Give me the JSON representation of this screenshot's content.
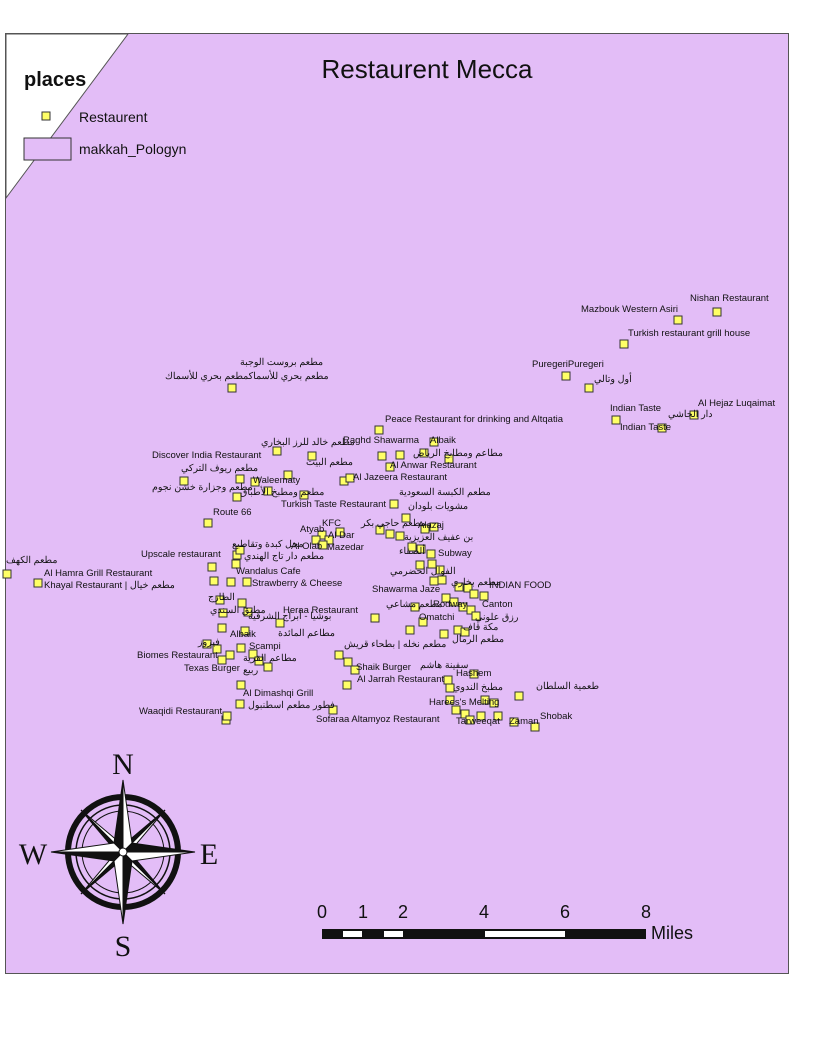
{
  "map_title": "Restaurent Mecca",
  "legend": {
    "heading": "places",
    "restaurant_label": "Restaurent",
    "polygon_label": "makkah_Pologyn",
    "marker_color": "#ffff66",
    "polygon_color": "#e3bdf7"
  },
  "compass": {
    "north": "N",
    "south": "S",
    "east": "E",
    "west": "W"
  },
  "scale_bar": {
    "ticks": [
      "0",
      "1",
      "2",
      "4",
      "6",
      "8"
    ],
    "unit": "Miles"
  },
  "labels": [
    "Nishan Restaurant",
    "Mazbouk Western Asiri",
    "Turkish restaurant grill house",
    "PuregeriPuregeri",
    "أول وتالي",
    "Indian Taste",
    "Indian Taste",
    "Al Hejaz Luqaimat",
    "دار الحاشي",
    "مطعم بروست الوجبة",
    "مطعم بحري للأسماكمطعم بحري للأسماك",
    "Peace Restaurant for drinking and Altqatia",
    "مطعم خالد للرز البخاري",
    "Raghd Shawarma",
    "Albaik",
    "مطاعم ومطابخ الرياض",
    "Discover India Restaurant",
    "مطعم البيت",
    "مطعم ريوف التركي",
    "Al Anwar Restaurant",
    "Waleematy",
    "مطعم وجزارة خشن نجوم",
    "Al Jazeera Restaurant",
    "مطعم ومطبخ الأطباق",
    "مطعم الكبسة السعودية",
    "Turkish Taste Restaurant",
    "مشويات بلودان",
    "Route 66",
    "KFC",
    "مطعم حاجي بكر",
    "Alazaj",
    "Atyab",
    "Al Dar",
    "بن عفيف العزيزية",
    "محل كبدة وتقاطيع",
    "Al Olab",
    "Mazedar",
    "ألصفاء",
    "Subway",
    "Upscale restaurant",
    "مطعم دار تاج الهندي",
    "مطعم الكهف",
    "الفوال الحضرمي",
    "Al Hamra Grill Restaurant",
    "Wandalus Cafe",
    "مطعم بخاري",
    "INDIAN FOOD",
    "Khayal Restaurant | مطعم خيال",
    "Strawberry & Cheese",
    "Shawarma Jaze",
    "الطازج",
    "مطبق السندي",
    "Rodway",
    "Canton",
    "مطعم مشاعي",
    "Heraa Restaurant",
    "بوشيا - أبراج الشرقية",
    "Omatchi",
    "رزق علوني",
    "مكة قاف",
    "مطاعم المائدة",
    "Albaik",
    "مطعم الرمال",
    "فيروز",
    "Scampi",
    "مطعم نخله | بطحاء قريش",
    "Biomes Restaurant",
    "مطاعم القرية",
    "Texas Burger",
    "ربيع",
    "Shaik Burger",
    "سفينة هاشم",
    "Hashem",
    "Al Jarrah Restaurant",
    "مطبخ الندوي",
    "طعمية السلطان",
    "Al Dimashqi Grill",
    "Harees's Melting",
    "فطور مطعم اسطنبول",
    "Waaqidi Restaurant",
    "Shobak",
    "Sofaraa Altamyoz Restaurant",
    "Tarweeqat",
    "Zaman"
  ]
}
